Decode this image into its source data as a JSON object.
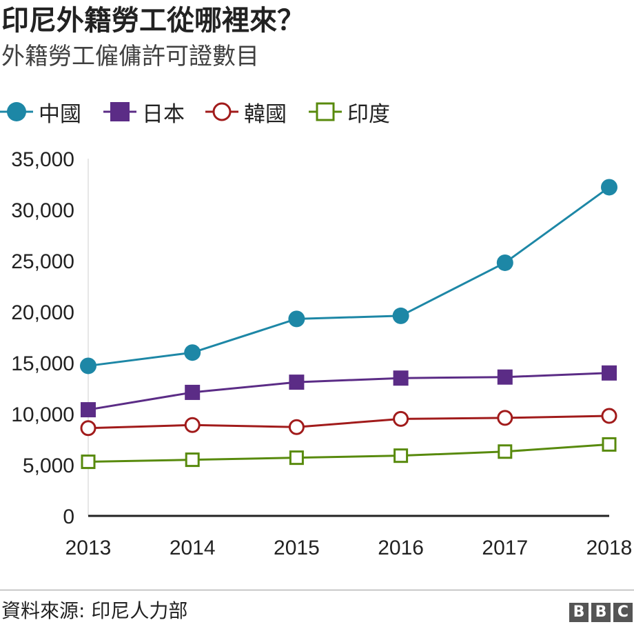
{
  "header": {
    "title": "印尼外籍勞工從哪裡來？",
    "subtitle": "外籍勞工僱傭許可證數目"
  },
  "legend": [
    {
      "label": "中國",
      "marker": "filled-circle-icon",
      "color": "#1d87a6"
    },
    {
      "label": "日本",
      "marker": "filled-square-icon",
      "color": "#5b2c86"
    },
    {
      "label": "韓國",
      "marker": "hollow-circle-icon",
      "color": "#a11b1b"
    },
    {
      "label": "印度",
      "marker": "hollow-square-icon",
      "color": "#588a0d"
    }
  ],
  "chart_data": {
    "type": "line",
    "x": [
      "2013",
      "2014",
      "2015",
      "2016",
      "2017",
      "2018"
    ],
    "series": [
      {
        "name": "中國",
        "color": "#1d87a6",
        "marker": "filled-circle",
        "values": [
          14700,
          16000,
          19300,
          19600,
          24800,
          32200
        ]
      },
      {
        "name": "日本",
        "color": "#5b2c86",
        "marker": "filled-square",
        "values": [
          10400,
          12100,
          13100,
          13500,
          13600,
          14000
        ]
      },
      {
        "name": "韓國",
        "color": "#a11b1b",
        "marker": "hollow-circle",
        "values": [
          8600,
          8900,
          8700,
          9500,
          9600,
          9800
        ]
      },
      {
        "name": "印度",
        "color": "#588a0d",
        "marker": "hollow-square",
        "values": [
          5300,
          5500,
          5700,
          5900,
          6300,
          7000
        ]
      }
    ],
    "ylim": [
      0,
      35000
    ],
    "yticks": [
      0,
      5000,
      10000,
      15000,
      20000,
      25000,
      30000,
      35000
    ],
    "ytick_labels": [
      "0",
      "5,000",
      "10,000",
      "15,000",
      "20,000",
      "25,000",
      "30,000",
      "35,000"
    ],
    "grid": false,
    "legend_position": "top-left"
  },
  "footer": {
    "source": "資料來源: 印尼人力部",
    "brand_letters": [
      "B",
      "B",
      "C"
    ]
  }
}
